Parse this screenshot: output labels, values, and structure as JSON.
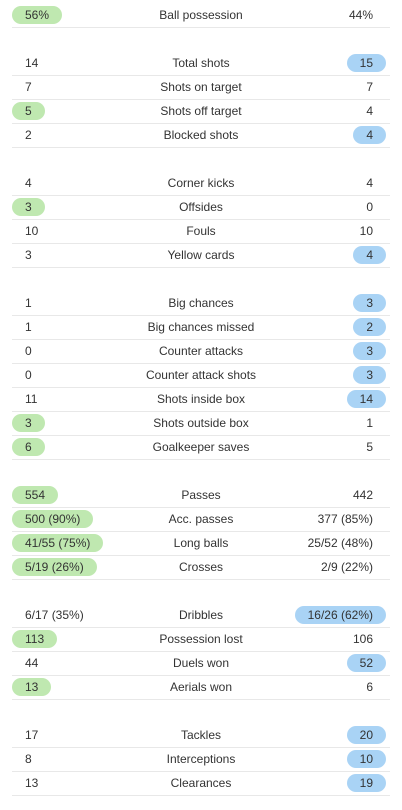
{
  "groups": [
    {
      "rows": [
        {
          "label": "Ball possession",
          "home": "56%",
          "away": "44%",
          "highlight": "home"
        }
      ]
    },
    {
      "rows": [
        {
          "label": "Total shots",
          "home": "14",
          "away": "15",
          "highlight": "away"
        },
        {
          "label": "Shots on target",
          "home": "7",
          "away": "7",
          "highlight": null
        },
        {
          "label": "Shots off target",
          "home": "5",
          "away": "4",
          "highlight": "home"
        },
        {
          "label": "Blocked shots",
          "home": "2",
          "away": "4",
          "highlight": "away"
        }
      ]
    },
    {
      "rows": [
        {
          "label": "Corner kicks",
          "home": "4",
          "away": "4",
          "highlight": null
        },
        {
          "label": "Offsides",
          "home": "3",
          "away": "0",
          "highlight": "home"
        },
        {
          "label": "Fouls",
          "home": "10",
          "away": "10",
          "highlight": null
        },
        {
          "label": "Yellow cards",
          "home": "3",
          "away": "4",
          "highlight": "away"
        }
      ]
    },
    {
      "rows": [
        {
          "label": "Big chances",
          "home": "1",
          "away": "3",
          "highlight": "away"
        },
        {
          "label": "Big chances missed",
          "home": "1",
          "away": "2",
          "highlight": "away"
        },
        {
          "label": "Counter attacks",
          "home": "0",
          "away": "3",
          "highlight": "away"
        },
        {
          "label": "Counter attack shots",
          "home": "0",
          "away": "3",
          "highlight": "away"
        },
        {
          "label": "Shots inside box",
          "home": "11",
          "away": "14",
          "highlight": "away"
        },
        {
          "label": "Shots outside box",
          "home": "3",
          "away": "1",
          "highlight": "home"
        },
        {
          "label": "Goalkeeper saves",
          "home": "6",
          "away": "5",
          "highlight": "home"
        }
      ]
    },
    {
      "rows": [
        {
          "label": "Passes",
          "home": "554",
          "away": "442",
          "highlight": "home"
        },
        {
          "label": "Acc. passes",
          "home": "500 (90%)",
          "away": "377 (85%)",
          "highlight": "home"
        },
        {
          "label": "Long balls",
          "home": "41/55 (75%)",
          "away": "25/52 (48%)",
          "highlight": "home"
        },
        {
          "label": "Crosses",
          "home": "5/19 (26%)",
          "away": "2/9 (22%)",
          "highlight": "home"
        }
      ]
    },
    {
      "rows": [
        {
          "label": "Dribbles",
          "home": "6/17 (35%)",
          "away": "16/26 (62%)",
          "highlight": "away"
        },
        {
          "label": "Possession lost",
          "home": "113",
          "away": "106",
          "highlight": "home"
        },
        {
          "label": "Duels won",
          "home": "44",
          "away": "52",
          "highlight": "away"
        },
        {
          "label": "Aerials won",
          "home": "13",
          "away": "6",
          "highlight": "home"
        }
      ]
    },
    {
      "rows": [
        {
          "label": "Tackles",
          "home": "17",
          "away": "20",
          "highlight": "away"
        },
        {
          "label": "Interceptions",
          "home": "8",
          "away": "10",
          "highlight": "away"
        },
        {
          "label": "Clearances",
          "home": "13",
          "away": "19",
          "highlight": "away"
        }
      ]
    }
  ]
}
